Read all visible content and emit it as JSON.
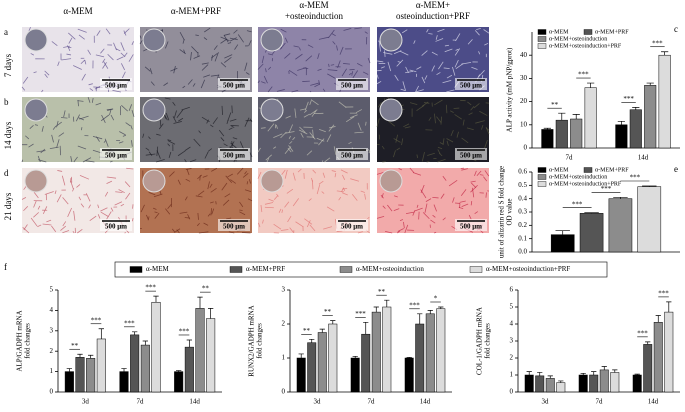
{
  "micrographs": {
    "columns": [
      [
        "α-MEM"
      ],
      [
        "α-MEM+PRF"
      ],
      [
        "α-MEM",
        "+osteoinduction"
      ],
      [
        "α-MEM+",
        "osteoinduction+PRF"
      ]
    ],
    "rows": [
      {
        "panel": "a",
        "label": "7 days"
      },
      {
        "panel": "b",
        "label": "14 days"
      },
      {
        "panel": "d",
        "label": "21 days"
      }
    ],
    "scale_bars": [
      [
        "500 μm",
        "500 μm",
        "500 μm",
        "500 μm"
      ],
      [
        "500 μm",
        "500 μm",
        "500 μm",
        "500 μm"
      ],
      [
        "500 μm",
        "500 μm",
        "500 μm",
        "500 μm"
      ]
    ]
  },
  "chart_data": [
    {
      "type": "bar",
      "panel": "c",
      "ylabel": [
        "ALP activity (mM pNP/gprot)"
      ],
      "categories": [
        "7d",
        "14d"
      ],
      "series": [
        {
          "name": "α-MEM",
          "color": "#000000",
          "values": [
            8,
            10
          ],
          "errors": [
            0.5,
            1.5
          ]
        },
        {
          "name": "α-MEM+PRF",
          "color": "#555555",
          "values": [
            12,
            16.5
          ],
          "errors": [
            3,
            1
          ]
        },
        {
          "name": "α-MEM+osteoinduction",
          "color": "#8c8c8c",
          "values": [
            12.5,
            27
          ],
          "errors": [
            2,
            1
          ]
        },
        {
          "name": "α-MEM+osteoinduction+PRF",
          "color": "#dcdcdc",
          "values": [
            26,
            40
          ],
          "errors": [
            2,
            1.5
          ]
        }
      ],
      "ylim": [
        0,
        50
      ],
      "yticks": [
        0,
        10,
        20,
        30,
        40
      ],
      "legend": "inside-top",
      "significance": [
        {
          "label": "**",
          "category": "7d",
          "series": [
            "α-MEM",
            "α-MEM+PRF"
          ]
        },
        {
          "label": "***",
          "category": "7d",
          "series": [
            "α-MEM+osteoinduction",
            "α-MEM+osteoinduction+PRF"
          ]
        },
        {
          "label": "***",
          "category": "14d",
          "series": [
            "α-MEM",
            "α-MEM+PRF"
          ]
        },
        {
          "label": "***",
          "category": "14d",
          "series": [
            "α-MEM+osteoinduction",
            "α-MEM+osteoinduction+PRF"
          ]
        }
      ]
    },
    {
      "type": "bar",
      "panel": "e",
      "ylabel": [
        "unit of alizarin red S fold change",
        "OD value"
      ],
      "categories": [
        null
      ],
      "series": [
        {
          "name": "α-MEM",
          "color": "#000000",
          "values": [
            0.13
          ],
          "errors": [
            0.03
          ]
        },
        {
          "name": "α-MEM+PRF",
          "color": "#555555",
          "values": [
            0.29
          ],
          "errors": [
            0.005
          ]
        },
        {
          "name": "α-MEM+osteoinduction",
          "color": "#8c8c8c",
          "values": [
            0.4
          ],
          "errors": [
            0.01
          ]
        },
        {
          "name": "α-MEM+osteoinduction+PRF",
          "color": "#dcdcdc",
          "values": [
            0.49
          ],
          "errors": [
            0.005
          ]
        }
      ],
      "ylim": [
        0,
        0.6
      ],
      "yticks": [
        {
          "value": 0,
          "label": "0.0"
        },
        0.1,
        0.2,
        0.3,
        0.4,
        0.5,
        0.6
      ],
      "legend": "inside-top",
      "significance": [
        {
          "label": "***",
          "category": null,
          "series": [
            "α-MEM",
            "α-MEM+PRF"
          ]
        },
        {
          "label": "***",
          "category": null,
          "series": [
            "α-MEM+PRF",
            "α-MEM+osteoinduction"
          ]
        },
        {
          "label": "***",
          "category": null,
          "series": [
            "α-MEM+osteoinduction",
            "α-MEM+osteoinduction+PRF"
          ]
        }
      ]
    },
    {
      "type": "bar",
      "panel": "f",
      "ylabel": [
        "ALP/GADPH mRNA",
        "fold changes"
      ],
      "categories": [
        "3d",
        "7d",
        "14d"
      ],
      "series": [
        {
          "name": "α-MEM",
          "color": "#000000",
          "values": [
            1.0,
            1.0,
            1.0
          ],
          "errors": [
            0.15,
            0.15,
            0.05
          ]
        },
        {
          "name": "α-MEM+PRF",
          "color": "#555555",
          "values": [
            1.7,
            2.8,
            2.2
          ],
          "errors": [
            0.15,
            0.15,
            0.35
          ]
        },
        {
          "name": "α-MEM+osteoinduction",
          "color": "#8c8c8c",
          "values": [
            1.65,
            2.3,
            4.1
          ],
          "errors": [
            0.15,
            0.2,
            0.55
          ]
        },
        {
          "name": "α-MEM+osteoinduction+PRF",
          "color": "#dcdcdc",
          "values": [
            2.6,
            4.4,
            3.6
          ],
          "errors": [
            0.5,
            0.3,
            0.5
          ]
        }
      ],
      "ylim": [
        0,
        5
      ],
      "yticks": [
        0,
        1,
        2,
        3,
        4,
        5
      ],
      "legend": "above",
      "significance": [
        {
          "label": "**",
          "category": "3d",
          "series": [
            "α-MEM",
            "α-MEM+PRF"
          ]
        },
        {
          "label": "***",
          "category": "3d",
          "series": [
            "α-MEM+osteoinduction",
            "α-MEM+osteoinduction+PRF"
          ]
        },
        {
          "label": "***",
          "category": "7d",
          "series": [
            "α-MEM",
            "α-MEM+PRF"
          ]
        },
        {
          "label": "***",
          "category": "7d",
          "series": [
            "α-MEM+osteoinduction",
            "α-MEM+osteoinduction+PRF"
          ]
        },
        {
          "label": "***",
          "category": "14d",
          "series": [
            "α-MEM",
            "α-MEM+PRF"
          ]
        },
        {
          "label": "**",
          "category": "14d",
          "series": [
            "α-MEM+osteoinduction",
            "α-MEM+osteoinduction+PRF"
          ]
        }
      ]
    },
    {
      "type": "bar",
      "ylabel": [
        "RUNX2/GADPH mRNA",
        "fold changes"
      ],
      "categories": [
        "3d",
        "7d",
        "14d"
      ],
      "series": [
        {
          "name": "α-MEM",
          "color": "#000000",
          "values": [
            1.0,
            1.0,
            1.0
          ],
          "errors": [
            0.12,
            0.05,
            0.02
          ]
        },
        {
          "name": "α-MEM+PRF",
          "color": "#555555",
          "values": [
            1.45,
            1.7,
            2.0
          ],
          "errors": [
            0.1,
            0.35,
            0.3
          ]
        },
        {
          "name": "α-MEM+osteoinduction",
          "color": "#8c8c8c",
          "values": [
            1.75,
            2.35,
            2.3
          ],
          "errors": [
            0.1,
            0.15,
            0.1
          ]
        },
        {
          "name": "α-MEM+osteoinduction+PRF",
          "color": "#dcdcdc",
          "values": [
            2.0,
            2.5,
            2.45
          ],
          "errors": [
            0.1,
            0.2,
            0.05
          ]
        }
      ],
      "ylim": [
        0,
        3
      ],
      "yticks": [
        0,
        1,
        2,
        3
      ],
      "significance": [
        {
          "label": "**",
          "category": "3d",
          "series": [
            "α-MEM",
            "α-MEM+PRF"
          ]
        },
        {
          "label": "**",
          "category": "3d",
          "series": [
            "α-MEM+osteoinduction",
            "α-MEM+osteoinduction+PRF"
          ]
        },
        {
          "label": "***",
          "category": "7d",
          "series": [
            "α-MEM",
            "α-MEM+PRF"
          ]
        },
        {
          "label": "**",
          "category": "7d",
          "series": [
            "α-MEM+osteoinduction",
            "α-MEM+osteoinduction+PRF"
          ]
        },
        {
          "label": "***",
          "category": "14d",
          "series": [
            "α-MEM",
            "α-MEM+PRF"
          ]
        },
        {
          "label": "*",
          "category": "14d",
          "series": [
            "α-MEM+osteoinduction",
            "α-MEM+osteoinduction+PRF"
          ]
        }
      ]
    },
    {
      "type": "bar",
      "ylabel": [
        "COL-1/GADPH mRNA",
        "fold changes"
      ],
      "categories": [
        "3d",
        "7d",
        "14d"
      ],
      "series": [
        {
          "name": "α-MEM",
          "color": "#000000",
          "values": [
            1.0,
            1.0,
            1.0
          ],
          "errors": [
            0.2,
            0.1,
            0.05
          ]
        },
        {
          "name": "α-MEM+PRF",
          "color": "#555555",
          "values": [
            0.95,
            1.0,
            2.8
          ],
          "errors": [
            0.2,
            0.2,
            0.15
          ]
        },
        {
          "name": "α-MEM+osteoinduction",
          "color": "#8c8c8c",
          "values": [
            0.8,
            1.3,
            4.1
          ],
          "errors": [
            0.15,
            0.2,
            0.4
          ]
        },
        {
          "name": "α-MEM+osteoinduction+PRF",
          "color": "#dcdcdc",
          "values": [
            0.55,
            1.15,
            4.7
          ],
          "errors": [
            0.1,
            0.15,
            0.6
          ]
        }
      ],
      "ylim": [
        0,
        6
      ],
      "yticks": [
        0,
        1,
        2,
        3,
        4,
        5,
        6
      ],
      "significance": [
        {
          "label": "***",
          "category": "14d",
          "series": [
            "α-MEM",
            "α-MEM+PRF"
          ]
        },
        {
          "label": "***",
          "category": "14d",
          "series": [
            "α-MEM+osteoinduction",
            "α-MEM+osteoinduction+PRF"
          ]
        }
      ]
    }
  ]
}
